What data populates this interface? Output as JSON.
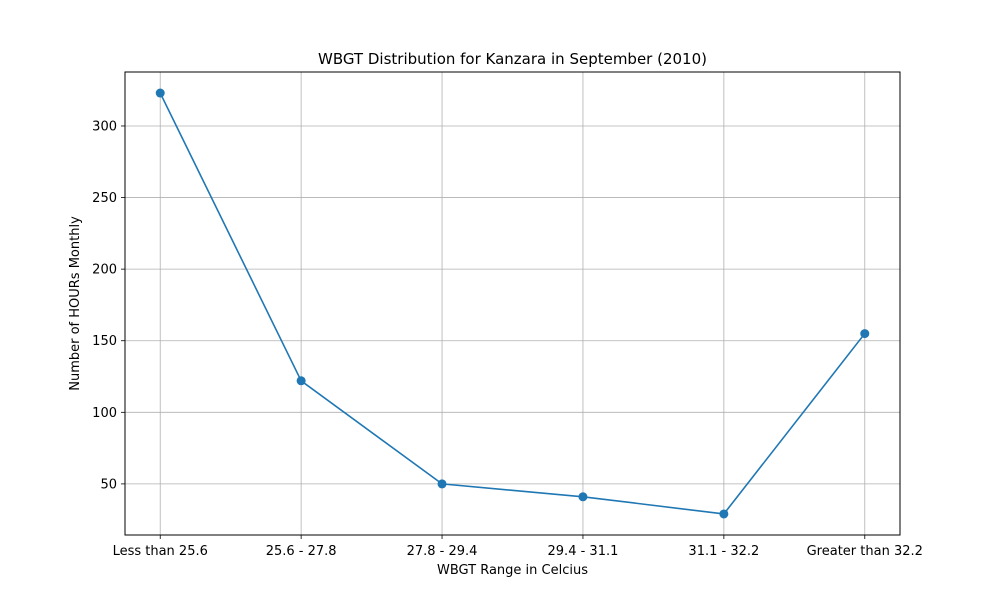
{
  "chart_data": {
    "type": "line",
    "title": "WBGT Distribution for Kanzara in September (2010)",
    "xlabel": "WBGT Range in Celcius",
    "ylabel": "Number of HOURs Monthly",
    "categories": [
      "Less than 25.6",
      "25.6 - 27.8",
      "27.8 - 29.4",
      "29.4 - 31.1",
      "31.1 - 32.2",
      "Greater than 32.2"
    ],
    "series": [
      {
        "values": [
          323,
          122,
          50,
          41,
          29,
          155
        ],
        "color": "#1f77b4",
        "marker": "circle"
      }
    ],
    "yticks": [
      50,
      100,
      150,
      200,
      250,
      300
    ],
    "ylim": [
      14.3,
      337.7
    ],
    "grid": true,
    "legend": "none"
  }
}
